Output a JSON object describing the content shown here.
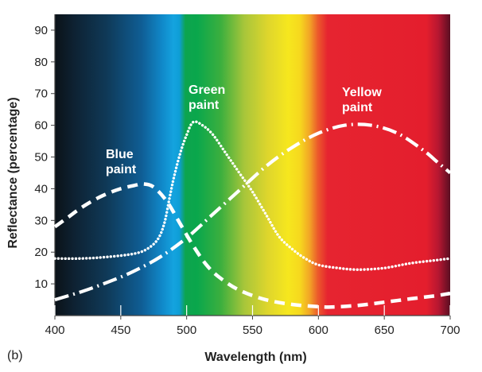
{
  "chart_data": {
    "type": "line",
    "panel_label": "(b)",
    "xlabel": "Wavelength (nm)",
    "ylabel": "Reflectance (percentage)",
    "xlim": [
      400,
      700
    ],
    "ylim": [
      0,
      95
    ],
    "x_ticks": [
      400,
      450,
      500,
      550,
      600,
      650,
      700
    ],
    "y_ticks": [
      10,
      20,
      30,
      40,
      50,
      60,
      70,
      80,
      90
    ],
    "grid": false,
    "background": "visible spectrum gradient",
    "series": [
      {
        "name_lines": [
          "Blue",
          "paint"
        ],
        "style": "dashed",
        "color": "#ffffff",
        "points": [
          [
            400,
            28
          ],
          [
            410,
            31
          ],
          [
            420,
            34
          ],
          [
            430,
            36.5
          ],
          [
            440,
            38.5
          ],
          [
            450,
            40
          ],
          [
            460,
            41
          ],
          [
            467,
            41.5
          ],
          [
            475,
            40.5
          ],
          [
            485,
            36
          ],
          [
            495,
            29
          ],
          [
            505,
            22
          ],
          [
            515,
            16
          ],
          [
            525,
            12
          ],
          [
            540,
            8
          ],
          [
            560,
            5
          ],
          [
            580,
            3.5
          ],
          [
            600,
            2.8
          ],
          [
            610,
            2.7
          ],
          [
            630,
            3.2
          ],
          [
            650,
            4.2
          ],
          [
            670,
            5.3
          ],
          [
            690,
            6.3
          ],
          [
            700,
            7
          ]
        ]
      },
      {
        "name_lines": [
          "Green",
          "paint"
        ],
        "style": "dotted",
        "color": "#ffffff",
        "points": [
          [
            400,
            18
          ],
          [
            420,
            18
          ],
          [
            440,
            18.5
          ],
          [
            460,
            19.5
          ],
          [
            470,
            21
          ],
          [
            478,
            24
          ],
          [
            483,
            29
          ],
          [
            487,
            37
          ],
          [
            490,
            43
          ],
          [
            495,
            51
          ],
          [
            500,
            57
          ],
          [
            505,
            61
          ],
          [
            512,
            60
          ],
          [
            520,
            57
          ],
          [
            530,
            51
          ],
          [
            540,
            45
          ],
          [
            550,
            39
          ],
          [
            560,
            32
          ],
          [
            570,
            25
          ],
          [
            580,
            21
          ],
          [
            590,
            18
          ],
          [
            600,
            16
          ],
          [
            615,
            15
          ],
          [
            630,
            14.5
          ],
          [
            650,
            15
          ],
          [
            670,
            16.5
          ],
          [
            690,
            17.5
          ],
          [
            700,
            18
          ]
        ]
      },
      {
        "name_lines": [
          "Yellow",
          "paint"
        ],
        "style": "dash-dot",
        "color": "#ffffff",
        "points": [
          [
            400,
            5
          ],
          [
            420,
            7.5
          ],
          [
            440,
            10.5
          ],
          [
            460,
            14
          ],
          [
            480,
            18.5
          ],
          [
            500,
            24.5
          ],
          [
            520,
            32
          ],
          [
            540,
            39.5
          ],
          [
            560,
            47
          ],
          [
            580,
            53
          ],
          [
            600,
            57.5
          ],
          [
            620,
            60
          ],
          [
            640,
            60
          ],
          [
            660,
            57.5
          ],
          [
            680,
            52
          ],
          [
            690,
            48.5
          ],
          [
            700,
            45
          ]
        ]
      }
    ]
  }
}
